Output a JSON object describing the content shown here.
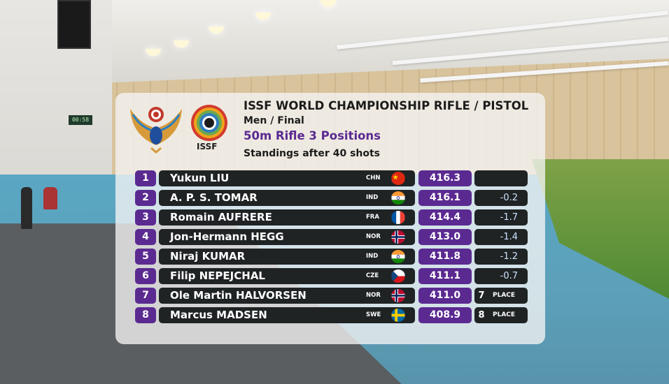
{
  "clock": "00:58",
  "logo": {
    "issf_text": "ISSF"
  },
  "header": {
    "title": "ISSF WORLD CHAMPIONSHIP RIFLE / PISTOL",
    "subtitle": "Men / Final",
    "event": "50m Rifle 3 Positions",
    "standings": "Standings after 40 shots"
  },
  "colors": {
    "accent": "#5b2a91",
    "row_bg": "#1f2324"
  },
  "rows": [
    {
      "rank": "1",
      "name": "Yukun LIU",
      "noc": "CHN",
      "flag_icon": "china-flag-icon",
      "score": "416.3",
      "diff": ""
    },
    {
      "rank": "2",
      "name": "A. P. S. TOMAR",
      "noc": "IND",
      "flag_icon": "india-flag-icon",
      "score": "416.1",
      "diff": "-0.2"
    },
    {
      "rank": "3",
      "name": "Romain AUFRERE",
      "noc": "FRA",
      "flag_icon": "france-flag-icon",
      "score": "414.4",
      "diff": "-1.7"
    },
    {
      "rank": "4",
      "name": "Jon-Hermann HEGG",
      "noc": "NOR",
      "flag_icon": "norway-flag-icon",
      "score": "413.0",
      "diff": "-1.4"
    },
    {
      "rank": "5",
      "name": "Niraj KUMAR",
      "noc": "IND",
      "flag_icon": "india-flag-icon",
      "score": "411.8",
      "diff": "-1.2"
    },
    {
      "rank": "6",
      "name": "Filip NEPEJCHAL",
      "noc": "CZE",
      "flag_icon": "czech-flag-icon",
      "score": "411.1",
      "diff": "-0.7"
    },
    {
      "rank": "7",
      "name": "Ole Martin HALVORSEN",
      "noc": "NOR",
      "flag_icon": "norway-flag-icon",
      "score": "411.0",
      "place_num": "7",
      "place_label": "PLACE"
    },
    {
      "rank": "8",
      "name": "Marcus MADSEN",
      "noc": "SWE",
      "flag_icon": "sweden-flag-icon",
      "score": "408.9",
      "place_num": "8",
      "place_label": "PLACE"
    }
  ]
}
